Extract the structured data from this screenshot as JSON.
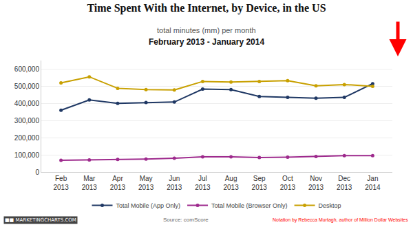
{
  "chart_data": {
    "type": "line",
    "title": "Time Spent With the Internet, by Device, in the US",
    "subtitle": [
      "total minutes (mm) per month",
      "February 2013 - January 2014"
    ],
    "annotations": [
      "Source: comScore",
      "Notation by Rebecca Murtagh, author of Million Dollar Websites",
      "■■ MARKETINGCHARTS.COM"
    ],
    "categories": [
      "Feb\n2013",
      "Mar\n2013",
      "Apr\n2013",
      "May\n2013",
      "Jun\n2013",
      "Jul\n2013",
      "Aug\n2013",
      "Sep\n2013",
      "Oct\n2013",
      "Nov\n2013",
      "Dec\n2013",
      "Jan\n2014"
    ],
    "series": [
      {
        "name": "Total Mobile (App Only)",
        "color": "#1f3864",
        "marker": "circle",
        "values": [
          360000,
          420000,
          400000,
          405000,
          408000,
          483000,
          480000,
          440000,
          435000,
          430000,
          435000,
          515000
        ]
      },
      {
        "name": "Total Mobile (Browser Only)",
        "color": "#9e2a8d",
        "marker": "circle",
        "values": [
          68000,
          70000,
          73000,
          75000,
          80000,
          88000,
          88000,
          84000,
          86000,
          90000,
          95000,
          95000
        ]
      },
      {
        "name": "Desktop",
        "color": "#c8a000",
        "marker": "circle",
        "values": [
          520000,
          555000,
          488000,
          480000,
          478000,
          528000,
          525000,
          528000,
          533000,
          503000,
          510000,
          500000
        ]
      }
    ],
    "ylim": [
      0,
      650000
    ],
    "yticks": [
      0,
      {
        "value": 100000,
        "label": "100,000"
      },
      {
        "value": 200000,
        "label": "200,000"
      },
      {
        "value": 300000,
        "label": "300,000"
      },
      {
        "value": 400000,
        "label": "400,000"
      },
      {
        "value": 500000,
        "label": "500,000"
      },
      {
        "value": 600000,
        "label": "600,000"
      }
    ],
    "grid": true,
    "legend": "bottom"
  }
}
